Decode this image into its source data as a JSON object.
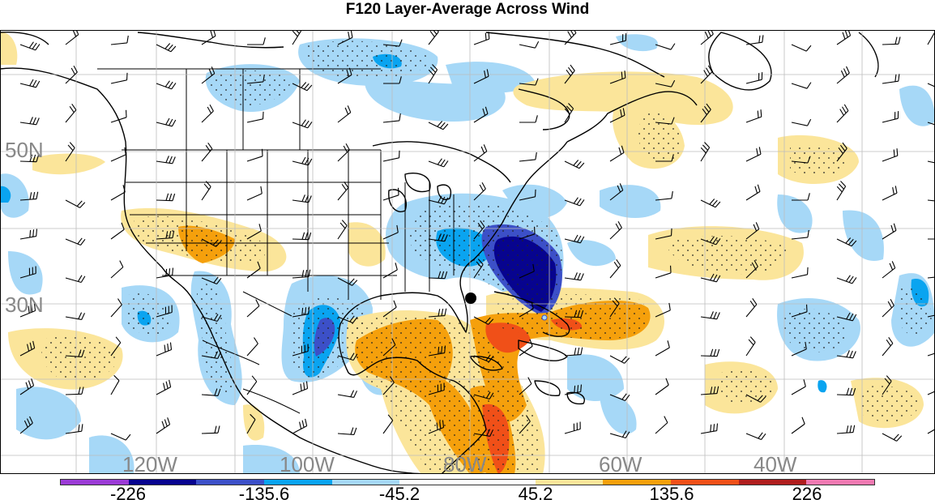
{
  "title": "F120 Layer-Average Across Wind",
  "grid_labels": {
    "lat": [
      "50N",
      "30N"
    ],
    "lon": [
      "120W",
      "100W",
      "80W",
      "60W",
      "40W"
    ]
  },
  "colorbar": {
    "colors": [
      "#9b3bd6",
      "#07048f",
      "#3c50c8",
      "#0aa4f0",
      "#a6d8f7",
      "#ffffff",
      "#ffffff",
      "#fbe59a",
      "#f5a00c",
      "#f05018",
      "#b01e1e",
      "#f07ab2"
    ],
    "labels": [
      "-226",
      "-135.6",
      "-45.2",
      "45.2",
      "135.6",
      "226"
    ]
  },
  "colors": {
    "light_blue": "#a6d8f7",
    "medium_blue": "#0aa4f0",
    "blue": "#3c50c8",
    "dark_blue": "#07048f",
    "light_yellow": "#fbe59a",
    "orange": "#f5a00c",
    "red_orange": "#f05018"
  }
}
